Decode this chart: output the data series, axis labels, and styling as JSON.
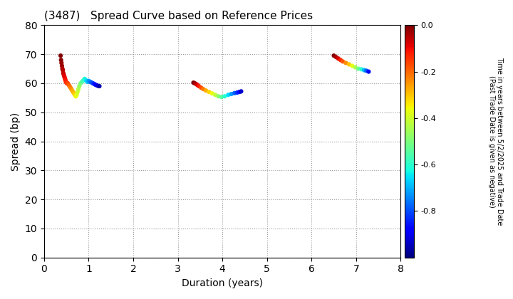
{
  "title": "(3487)   Spread Curve based on Reference Prices",
  "xlabel": "Duration (years)",
  "ylabel": "Spread (bp)",
  "colorbar_label_line1": "Time in years between 5/2/2025 and Trade Date",
  "colorbar_label_line2": "(Past Trade Date is given as negative)",
  "xlim": [
    0,
    8
  ],
  "ylim": [
    0,
    80
  ],
  "xticks": [
    0,
    1,
    2,
    3,
    4,
    5,
    6,
    7,
    8
  ],
  "yticks": [
    0,
    10,
    20,
    30,
    40,
    50,
    60,
    70,
    80
  ],
  "clim": [
    -1.0,
    0.0
  ],
  "cticks": [
    0.0,
    -0.2,
    -0.4,
    -0.6,
    -0.8
  ],
  "cluster1": {
    "duration": [
      0.37,
      0.38,
      0.39,
      0.4,
      0.41,
      0.42,
      0.43,
      0.44,
      0.45,
      0.46,
      0.47,
      0.48,
      0.49,
      0.5,
      0.51,
      0.52,
      0.53,
      0.55,
      0.57,
      0.59,
      0.61,
      0.63,
      0.65,
      0.67,
      0.69,
      0.71,
      0.73,
      0.75,
      0.77,
      0.79,
      0.82,
      0.85,
      0.88,
      0.91,
      0.94,
      0.97,
      1.0,
      1.03,
      1.06,
      1.09,
      1.12,
      1.15,
      1.18,
      1.21,
      1.24
    ],
    "spread": [
      69.5,
      68.0,
      67.0,
      66.0,
      65.0,
      64.5,
      63.5,
      63.0,
      62.5,
      62.0,
      61.5,
      61.0,
      60.5,
      60.2,
      60.0,
      60.0,
      60.0,
      59.5,
      59.0,
      58.5,
      58.0,
      57.5,
      57.0,
      56.5,
      56.0,
      55.5,
      56.0,
      57.0,
      58.0,
      59.0,
      60.0,
      60.5,
      61.0,
      61.5,
      61.0,
      60.5,
      60.8,
      60.5,
      60.3,
      60.0,
      59.8,
      59.5,
      59.3,
      59.1,
      59.0
    ],
    "time": [
      0.0,
      -0.01,
      -0.02,
      -0.03,
      -0.04,
      -0.05,
      -0.06,
      -0.07,
      -0.08,
      -0.09,
      -0.1,
      -0.11,
      -0.12,
      -0.13,
      -0.14,
      -0.15,
      -0.16,
      -0.18,
      -0.2,
      -0.22,
      -0.24,
      -0.26,
      -0.28,
      -0.3,
      -0.32,
      -0.35,
      -0.38,
      -0.4,
      -0.43,
      -0.46,
      -0.5,
      -0.54,
      -0.57,
      -0.61,
      -0.65,
      -0.68,
      -0.72,
      -0.75,
      -0.78,
      -0.81,
      -0.84,
      -0.87,
      -0.9,
      -0.93,
      -0.96
    ]
  },
  "cluster2": {
    "duration": [
      3.35,
      3.38,
      3.41,
      3.44,
      3.47,
      3.52,
      3.57,
      3.63,
      3.7,
      3.77,
      3.84,
      3.91,
      3.98,
      4.05,
      4.13,
      4.2,
      4.27,
      4.33,
      4.38,
      4.42
    ],
    "spread": [
      60.2,
      60.0,
      59.7,
      59.4,
      59.0,
      58.5,
      58.0,
      57.5,
      57.0,
      56.5,
      56.0,
      55.5,
      55.3,
      55.5,
      56.0,
      56.3,
      56.6,
      56.8,
      57.0,
      57.2
    ],
    "time": [
      0.0,
      -0.02,
      -0.05,
      -0.08,
      -0.12,
      -0.17,
      -0.22,
      -0.27,
      -0.32,
      -0.37,
      -0.42,
      -0.48,
      -0.54,
      -0.6,
      -0.66,
      -0.72,
      -0.78,
      -0.83,
      -0.88,
      -0.93
    ]
  },
  "cluster3": {
    "duration": [
      6.5,
      6.55,
      6.6,
      6.65,
      6.7,
      6.77,
      6.84,
      6.91,
      6.98,
      7.05,
      7.12,
      7.18,
      7.23,
      7.28
    ],
    "spread": [
      69.5,
      69.0,
      68.5,
      68.0,
      67.5,
      67.0,
      66.5,
      66.0,
      65.5,
      65.0,
      64.8,
      64.5,
      64.3,
      64.0
    ],
    "time": [
      0.0,
      -0.04,
      -0.08,
      -0.13,
      -0.18,
      -0.24,
      -0.3,
      -0.37,
      -0.44,
      -0.52,
      -0.6,
      -0.7,
      -0.78,
      -0.87
    ]
  }
}
